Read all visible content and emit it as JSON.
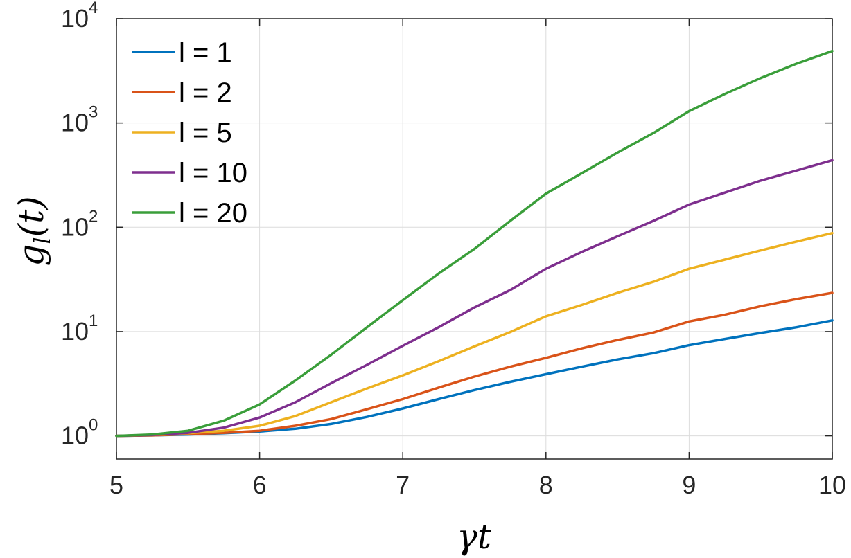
{
  "chart_data": {
    "type": "line",
    "title": "",
    "xlabel": "γt",
    "ylabel": {
      "base": "g",
      "subscript": "l",
      "suffix": "(t)"
    },
    "xlim": [
      5,
      10
    ],
    "ylim": [
      0.6,
      10000
    ],
    "yscale": "log",
    "grid": true,
    "legend_position": "top-left",
    "x_ticks": [
      "5",
      "6",
      "7",
      "8",
      "9",
      "10"
    ],
    "x_tick_values": [
      5,
      6,
      7,
      8,
      9,
      10
    ],
    "y_ticks": [
      {
        "value": 1,
        "base": "10",
        "exp": "0"
      },
      {
        "value": 10,
        "base": "10",
        "exp": "1"
      },
      {
        "value": 100,
        "base": "10",
        "exp": "2"
      },
      {
        "value": 1000,
        "base": "10",
        "exp": "3"
      },
      {
        "value": 10000,
        "base": "10",
        "exp": "4"
      }
    ],
    "x": [
      5.0,
      5.25,
      5.5,
      5.75,
      6.0,
      6.25,
      6.5,
      6.75,
      7.0,
      7.25,
      7.5,
      7.75,
      8.0,
      8.25,
      8.5,
      8.75,
      9.0,
      9.25,
      9.5,
      9.75,
      10.0
    ],
    "series": [
      {
        "name": "l = 1",
        "color": "#0072BD",
        "values": [
          1.0,
          1.01,
          1.03,
          1.06,
          1.1,
          1.17,
          1.3,
          1.52,
          1.83,
          2.25,
          2.75,
          3.3,
          3.9,
          4.6,
          5.4,
          6.2,
          7.4,
          8.5,
          9.7,
          11.0,
          12.8
        ]
      },
      {
        "name": "l = 2",
        "color": "#D95319",
        "values": [
          1.0,
          1.01,
          1.04,
          1.07,
          1.12,
          1.25,
          1.45,
          1.8,
          2.25,
          2.9,
          3.7,
          4.6,
          5.6,
          6.9,
          8.3,
          9.8,
          12.5,
          14.5,
          17.5,
          20.5,
          23.5
        ]
      },
      {
        "name": "l = 5",
        "color": "#EDB120",
        "values": [
          1.0,
          1.02,
          1.06,
          1.12,
          1.25,
          1.55,
          2.1,
          2.85,
          3.8,
          5.2,
          7.2,
          9.9,
          14.0,
          18.0,
          23.5,
          30.0,
          40.0,
          49.0,
          60.0,
          73.0,
          88.0
        ]
      },
      {
        "name": "l = 10",
        "color": "#7E2F8E",
        "values": [
          1.0,
          1.02,
          1.07,
          1.2,
          1.5,
          2.1,
          3.2,
          4.8,
          7.3,
          11.0,
          17.0,
          25.0,
          40.0,
          58.0,
          82.0,
          115.0,
          165.0,
          215.0,
          280.0,
          350.0,
          440.0
        ]
      },
      {
        "name": "l = 20",
        "color": "#3A9E3A",
        "values": [
          1.0,
          1.03,
          1.12,
          1.4,
          2.0,
          3.4,
          6.0,
          11.0,
          20.0,
          36.0,
          62.0,
          115.0,
          210.0,
          330.0,
          520.0,
          800.0,
          1300.0,
          1900.0,
          2700.0,
          3700.0,
          4900.0
        ]
      }
    ]
  }
}
